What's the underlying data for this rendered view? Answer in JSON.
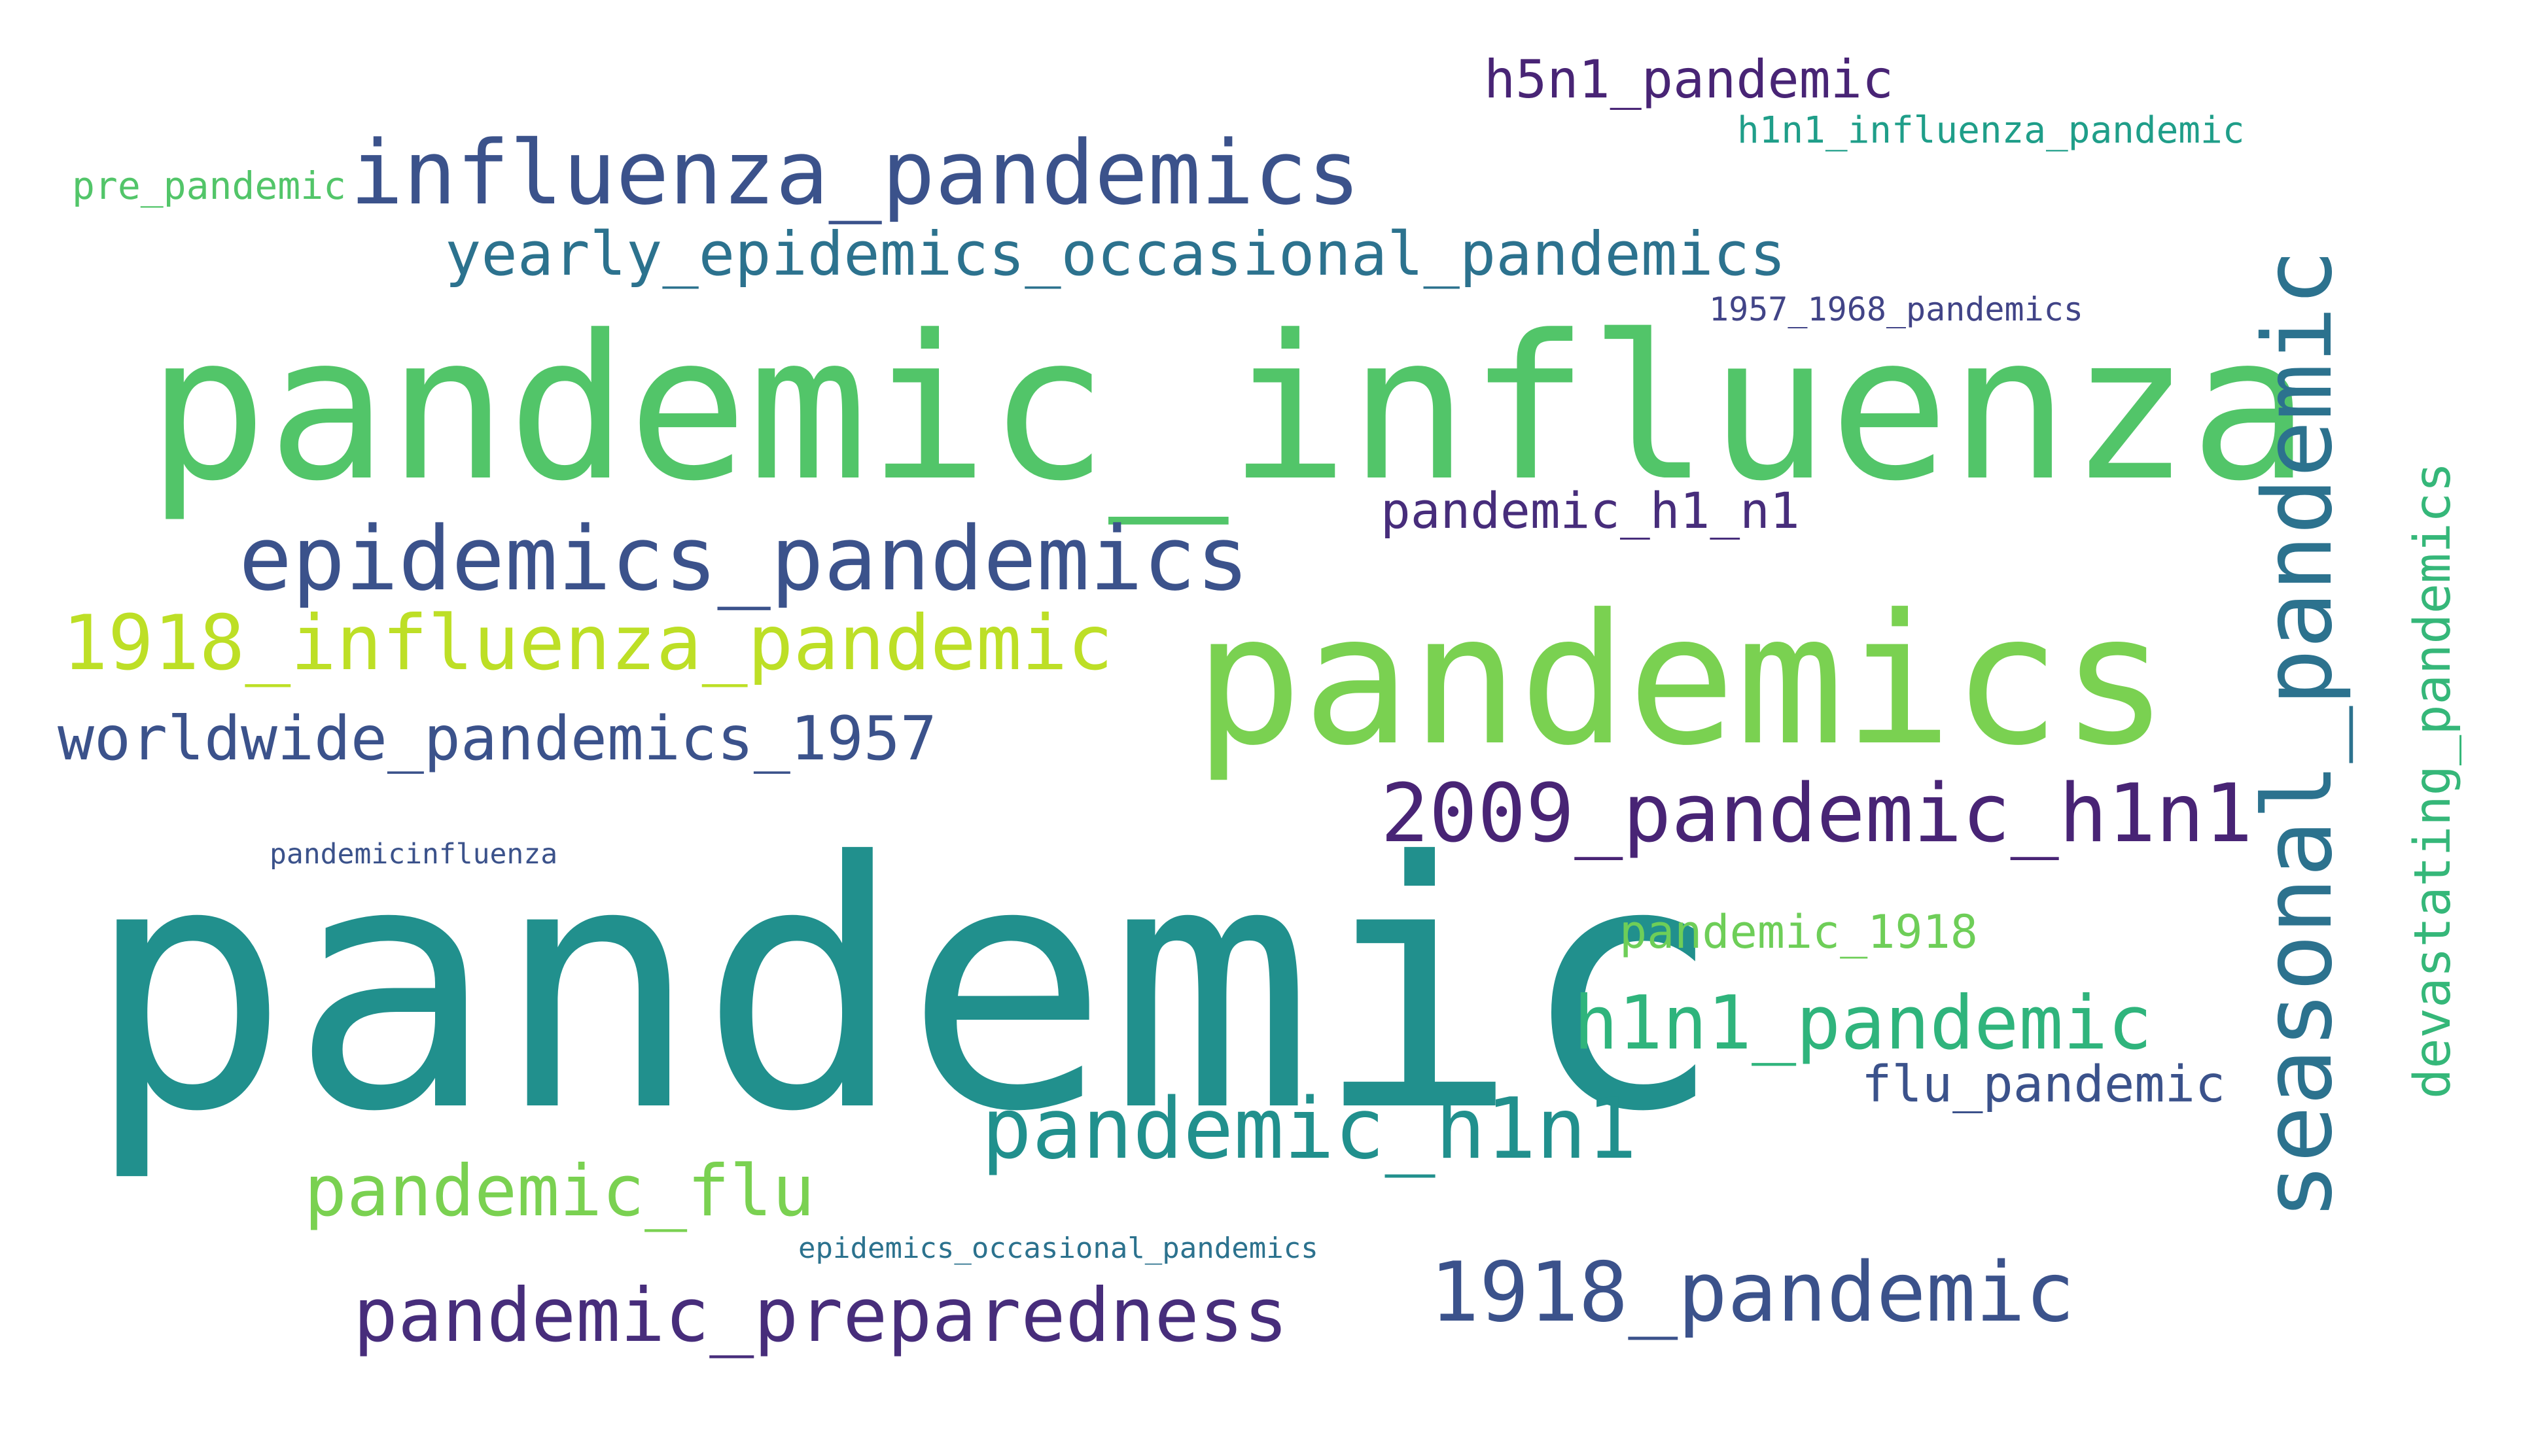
{
  "words": {
    "pandemic": {
      "text": "pandemic",
      "color": "#21908d"
    },
    "pandemic_influenza": {
      "text": "pandemic_influenza",
      "color": "#52c569"
    },
    "pandemics": {
      "text": "pandemics",
      "color": "#7ad151"
    },
    "seasonal_pandemic": {
      "text": "seasonal_pandemic",
      "color": "#2c728e"
    },
    "influenza_pandemics": {
      "text": "influenza_pandemics",
      "color": "#3b528b"
    },
    "epidemics_pandemics": {
      "text": "epidemics_pandemics",
      "color": "#3b528b"
    },
    "yearly_epidemics_occasional_pandemics": {
      "text": "yearly_epidemics_occasional_pandemics",
      "color": "#2c728e"
    },
    "1918_influenza_pandemic": {
      "text": "1918_influenza_pandemic",
      "color": "#bddf26"
    },
    "worldwide_pandemics_1957": {
      "text": "worldwide_pandemics_1957",
      "color": "#3b528b"
    },
    "2009_pandemic_h1n1": {
      "text": "2009_pandemic_h1n1",
      "color": "#482475"
    },
    "h1n1_pandemic": {
      "text": "h1n1_pandemic",
      "color": "#2fb47c"
    },
    "pandemic_h1n1": {
      "text": "pandemic_h1n1",
      "color": "#21908d"
    },
    "pandemic_flu": {
      "text": "pandemic_flu",
      "color": "#7ad151"
    },
    "pandemic_preparedness": {
      "text": "pandemic_preparedness",
      "color": "#472d7b"
    },
    "1918_pandemic": {
      "text": "1918_pandemic",
      "color": "#3b528b"
    },
    "h5n1_pandemic": {
      "text": "h5n1_pandemic",
      "color": "#482475"
    },
    "h1n1_influenza_pandemic": {
      "text": "h1n1_influenza_pandemic",
      "color": "#1f9e89"
    },
    "pre_pandemic": {
      "text": "pre_pandemic",
      "color": "#52c569"
    },
    "1957_1968_pandemics": {
      "text": "1957_1968_pandemics",
      "color": "#414487"
    },
    "pandemic_h1_n1": {
      "text": "pandemic_h1_n1",
      "color": "#472d7b"
    },
    "pandemicinfluenza": {
      "text": "pandemicinfluenza",
      "color": "#3b528b"
    },
    "pandemic_1918": {
      "text": "pandemic_1918",
      "color": "#6ece58"
    },
    "flu_pandemic": {
      "text": "flu_pandemic",
      "color": "#3b528b"
    },
    "epidemics_occasional_pandemics": {
      "text": "epidemics_occasional_pandemics",
      "color": "#2c728e"
    },
    "devastating_pandemics": {
      "text": "devastating_pandemics",
      "color": "#35b779"
    }
  }
}
